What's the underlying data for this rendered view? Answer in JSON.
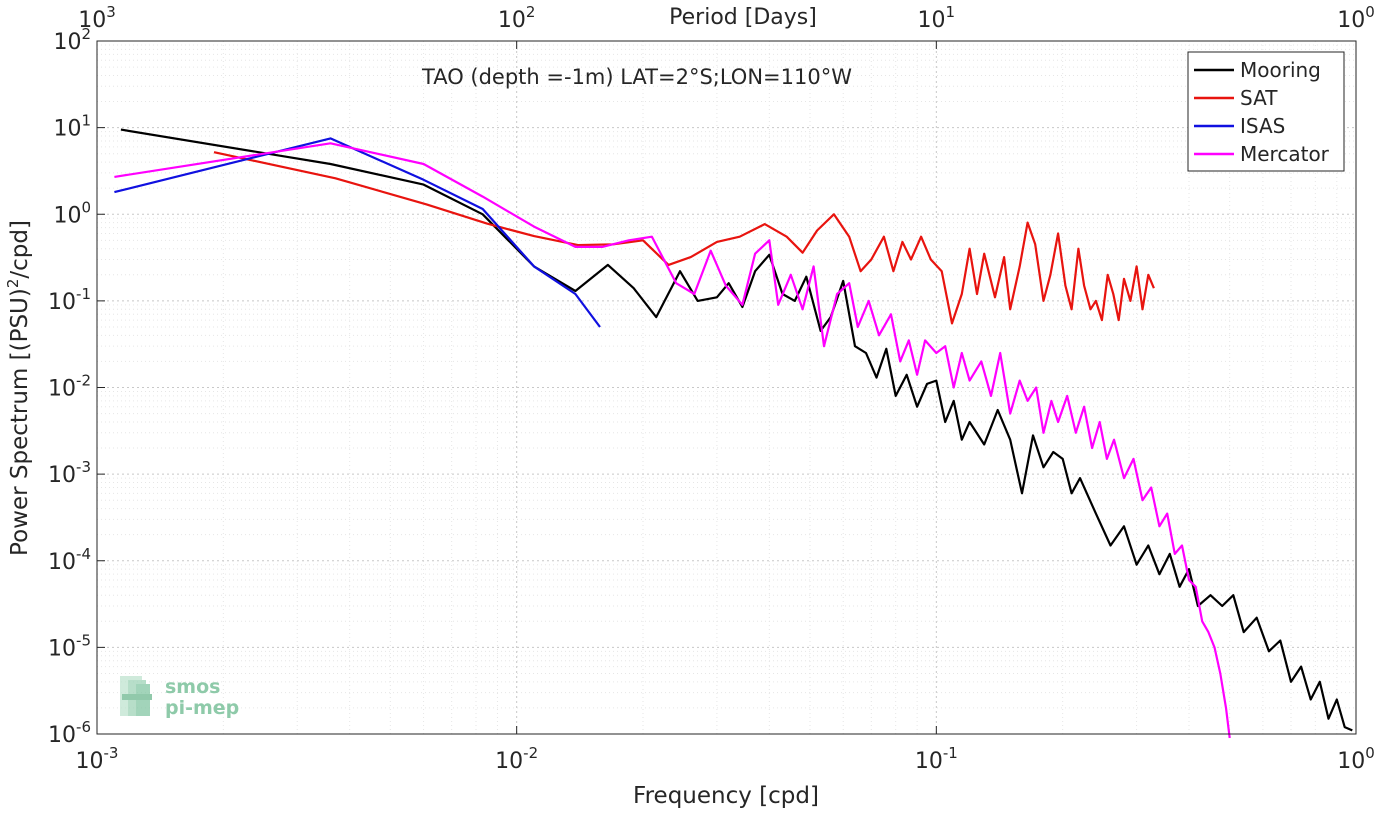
{
  "chart_data": {
    "type": "line",
    "title": "TAO (depth =-1m) LAT=2°S;LON=110°W",
    "xlabel": "Frequency [cpd]",
    "ylabel": "Power Spectrum [(PSU)",
    "ylabel_sup": "2",
    "ylabel_tail": "/cpd]",
    "top_xlabel": "Period [Days]",
    "x_scale": "log",
    "y_scale": "log",
    "xlim": [
      0.001,
      1
    ],
    "ylim": [
      1e-06,
      100
    ],
    "grid": true,
    "legend_position": "top-right",
    "x_ticks": [
      {
        "base": "10",
        "exp": "-3",
        "value": 0.001
      },
      {
        "base": "10",
        "exp": "-2",
        "value": 0.01
      },
      {
        "base": "10",
        "exp": "-1",
        "value": 0.1
      },
      {
        "base": "10",
        "exp": "0",
        "value": 1
      }
    ],
    "y_ticks": [
      {
        "base": "10",
        "exp": "2",
        "value": 100
      },
      {
        "base": "10",
        "exp": "1",
        "value": 10
      },
      {
        "base": "10",
        "exp": "0",
        "value": 1
      },
      {
        "base": "10",
        "exp": "-1",
        "value": 0.1
      },
      {
        "base": "10",
        "exp": "-2",
        "value": 0.01
      },
      {
        "base": "10",
        "exp": "-3",
        "value": 0.001
      },
      {
        "base": "10",
        "exp": "-4",
        "value": 0.0001
      },
      {
        "base": "10",
        "exp": "-5",
        "value": 1e-05
      },
      {
        "base": "10",
        "exp": "-6",
        "value": 1e-06
      }
    ],
    "top_ticks": [
      {
        "base": "10",
        "exp": "3",
        "freq": 0.001
      },
      {
        "base": "10",
        "exp": "2",
        "freq": 0.01
      },
      {
        "base": "10",
        "exp": "1",
        "freq": 0.1
      },
      {
        "base": "10",
        "exp": "0",
        "freq": 1
      }
    ],
    "series": [
      {
        "name": "Mooring",
        "color": "#000000",
        "x": [
          0.00114,
          0.0036,
          0.006,
          0.0083,
          0.011,
          0.0138,
          0.0165,
          0.019,
          0.0215,
          0.0245,
          0.027,
          0.03,
          0.032,
          0.0345,
          0.037,
          0.04,
          0.043,
          0.046,
          0.049,
          0.053,
          0.056,
          0.06,
          0.064,
          0.068,
          0.072,
          0.076,
          0.08,
          0.085,
          0.09,
          0.095,
          0.1,
          0.105,
          0.11,
          0.115,
          0.12,
          0.13,
          0.14,
          0.15,
          0.16,
          0.17,
          0.18,
          0.19,
          0.2,
          0.21,
          0.22,
          0.24,
          0.26,
          0.28,
          0.3,
          0.32,
          0.34,
          0.36,
          0.38,
          0.4,
          0.42,
          0.45,
          0.48,
          0.51,
          0.54,
          0.58,
          0.62,
          0.66,
          0.7,
          0.74,
          0.78,
          0.82,
          0.86,
          0.9,
          0.94,
          0.98
        ],
        "y": [
          9.5,
          3.8,
          2.2,
          1.0,
          0.25,
          0.13,
          0.26,
          0.14,
          0.065,
          0.22,
          0.1,
          0.11,
          0.16,
          0.085,
          0.22,
          0.34,
          0.12,
          0.1,
          0.19,
          0.045,
          0.065,
          0.17,
          0.03,
          0.025,
          0.013,
          0.028,
          0.008,
          0.014,
          0.006,
          0.011,
          0.012,
          0.004,
          0.007,
          0.0025,
          0.004,
          0.0022,
          0.0055,
          0.0025,
          0.0006,
          0.0028,
          0.0012,
          0.0018,
          0.0015,
          0.0006,
          0.0009,
          0.00035,
          0.00015,
          0.00025,
          9e-05,
          0.00015,
          7e-05,
          0.00012,
          5e-05,
          8e-05,
          3e-05,
          4e-05,
          3e-05,
          4e-05,
          1.5e-05,
          2.2e-05,
          9e-06,
          1.2e-05,
          4e-06,
          6e-06,
          2.5e-06,
          4e-06,
          1.5e-06,
          2.5e-06,
          1.2e-06,
          1.1e-06
        ]
      },
      {
        "name": "SAT",
        "color": "#e8140f",
        "x": [
          0.0019,
          0.0037,
          0.0061,
          0.0085,
          0.011,
          0.014,
          0.017,
          0.02,
          0.023,
          0.026,
          0.03,
          0.034,
          0.039,
          0.044,
          0.048,
          0.052,
          0.057,
          0.062,
          0.066,
          0.07,
          0.075,
          0.079,
          0.083,
          0.087,
          0.092,
          0.097,
          0.103,
          0.109,
          0.115,
          0.12,
          0.125,
          0.13,
          0.138,
          0.145,
          0.15,
          0.158,
          0.165,
          0.172,
          0.18,
          0.187,
          0.195,
          0.203,
          0.21,
          0.218,
          0.225,
          0.233,
          0.24,
          0.248,
          0.256,
          0.264,
          0.272,
          0.28,
          0.29,
          0.3,
          0.31,
          0.32,
          0.33
        ],
        "y": [
          5.2,
          2.6,
          1.3,
          0.78,
          0.56,
          0.44,
          0.45,
          0.5,
          0.26,
          0.32,
          0.48,
          0.55,
          0.77,
          0.55,
          0.36,
          0.65,
          1.0,
          0.55,
          0.22,
          0.3,
          0.55,
          0.22,
          0.48,
          0.3,
          0.55,
          0.3,
          0.22,
          0.055,
          0.12,
          0.4,
          0.12,
          0.35,
          0.11,
          0.32,
          0.08,
          0.25,
          0.8,
          0.45,
          0.1,
          0.2,
          0.6,
          0.15,
          0.08,
          0.4,
          0.15,
          0.08,
          0.1,
          0.06,
          0.2,
          0.12,
          0.06,
          0.18,
          0.1,
          0.25,
          0.08,
          0.2,
          0.14
        ]
      },
      {
        "name": "ISAS",
        "color": "#1010e0",
        "x": [
          0.0011,
          0.0036,
          0.006,
          0.0083,
          0.011,
          0.0138,
          0.0158
        ],
        "y": [
          1.8,
          7.5,
          2.5,
          1.15,
          0.25,
          0.12,
          0.05
        ]
      },
      {
        "name": "Mercator",
        "color": "#ff00ff",
        "x": [
          0.0011,
          0.0036,
          0.006,
          0.0083,
          0.011,
          0.0138,
          0.016,
          0.0185,
          0.021,
          0.024,
          0.0265,
          0.029,
          0.0315,
          0.0345,
          0.037,
          0.04,
          0.042,
          0.045,
          0.048,
          0.051,
          0.054,
          0.058,
          0.062,
          0.065,
          0.069,
          0.073,
          0.078,
          0.082,
          0.086,
          0.09,
          0.094,
          0.1,
          0.105,
          0.11,
          0.115,
          0.12,
          0.128,
          0.135,
          0.142,
          0.15,
          0.158,
          0.165,
          0.173,
          0.18,
          0.188,
          0.195,
          0.205,
          0.215,
          0.225,
          0.235,
          0.245,
          0.255,
          0.265,
          0.28,
          0.295,
          0.31,
          0.325,
          0.34,
          0.355,
          0.37,
          0.385,
          0.4,
          0.415,
          0.43,
          0.445,
          0.46,
          0.475,
          0.49,
          0.5
        ],
        "y": [
          2.7,
          6.6,
          3.8,
          1.6,
          0.72,
          0.42,
          0.42,
          0.5,
          0.55,
          0.16,
          0.12,
          0.38,
          0.15,
          0.09,
          0.35,
          0.5,
          0.09,
          0.2,
          0.08,
          0.25,
          0.03,
          0.12,
          0.16,
          0.05,
          0.1,
          0.04,
          0.07,
          0.02,
          0.035,
          0.014,
          0.035,
          0.025,
          0.03,
          0.01,
          0.025,
          0.012,
          0.02,
          0.008,
          0.025,
          0.005,
          0.012,
          0.007,
          0.01,
          0.003,
          0.007,
          0.004,
          0.008,
          0.003,
          0.006,
          0.002,
          0.004,
          0.0015,
          0.0025,
          0.0009,
          0.0015,
          0.0005,
          0.0007,
          0.00025,
          0.00035,
          0.00012,
          0.00015,
          6e-05,
          5e-05,
          2e-05,
          1.5e-05,
          1e-05,
          5e-06,
          2e-06,
          9e-07
        ]
      }
    ],
    "watermark": {
      "line1": "smos",
      "line2": "pi-mep"
    }
  }
}
